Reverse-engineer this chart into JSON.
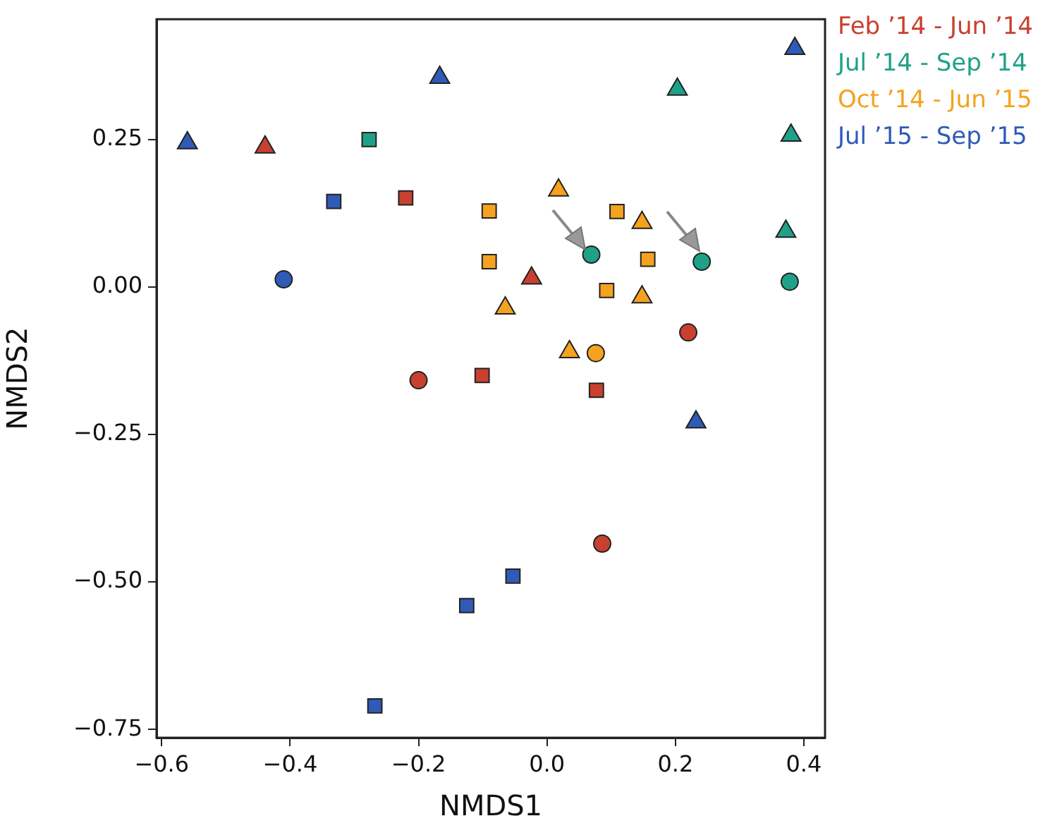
{
  "chart_data": {
    "type": "scatter",
    "xlabel": "NMDS1",
    "ylabel": "NMDS2",
    "xlim": [
      -0.608,
      0.433
    ],
    "ylim": [
      -0.764,
      0.454
    ],
    "xticks": [
      {
        "value": -0.6,
        "label": "−0.6"
      },
      {
        "value": -0.4,
        "label": "−0.4"
      },
      {
        "value": -0.2,
        "label": "−0.2"
      },
      {
        "value": 0,
        "label": "0.0"
      },
      {
        "value": 0.2,
        "label": "0.2"
      },
      {
        "value": 0.4,
        "label": "0.4"
      }
    ],
    "yticks": [
      {
        "value": -0.75,
        "label": "−0.75"
      },
      {
        "value": -0.5,
        "label": "−0.50"
      },
      {
        "value": -0.25,
        "label": "−0.25"
      },
      {
        "value": 0,
        "label": "0.00"
      },
      {
        "value": 0.25,
        "label": "0.25"
      }
    ],
    "grid": false,
    "legend": "top right",
    "series": [
      {
        "name": "Feb ’14 - Jun ’14",
        "color": "#c8402f",
        "marker": "triangle",
        "x": [
          -0.439,
          -0.024
        ],
        "values": [
          0.237,
          0.015
        ]
      },
      {
        "color": "#c8402f",
        "marker": "square",
        "x": [
          -0.22,
          -0.101,
          0.077
        ],
        "values": [
          0.151,
          -0.15,
          -0.175
        ]
      },
      {
        "color": "#c8402f",
        "marker": "circle",
        "x": [
          0.22,
          -0.2,
          0.086
        ],
        "values": [
          -0.077,
          -0.158,
          -0.435
        ]
      },
      {
        "name": "Jul ’14 - Sep ’14",
        "color": "#1fa187",
        "marker": "triangle",
        "x": [
          0.203,
          0.38,
          0.372
        ],
        "values": [
          0.335,
          0.257,
          0.094
        ]
      },
      {
        "color": "#1fa187",
        "marker": "square",
        "x": [
          -0.277
        ],
        "values": [
          0.25
        ]
      },
      {
        "color": "#1fa187",
        "marker": "circle",
        "x": [
          0.069,
          0.241,
          0.378
        ],
        "values": [
          0.055,
          0.043,
          0.009
        ]
      },
      {
        "name": "Oct ’14 - Jun ’15",
        "color": "#f5a21f",
        "marker": "triangle",
        "x": [
          0.018,
          0.148,
          0.148,
          -0.065,
          0.035
        ],
        "values": [
          0.164,
          0.109,
          -0.017,
          -0.036,
          -0.11
        ]
      },
      {
        "color": "#f5a21f",
        "marker": "square",
        "x": [
          -0.09,
          -0.09,
          0.109,
          0.157,
          0.093
        ],
        "values": [
          0.129,
          0.043,
          0.128,
          0.047,
          -0.006
        ]
      },
      {
        "color": "#f5a21f",
        "marker": "circle",
        "x": [
          0.076
        ],
        "values": [
          -0.112
        ]
      },
      {
        "name": "Jul ’15 - Sep ’15",
        "color": "#2f5bb7",
        "marker": "triangle",
        "x": [
          -0.56,
          -0.167,
          0.386,
          0.232
        ],
        "values": [
          0.244,
          0.355,
          0.404,
          -0.229
        ]
      },
      {
        "color": "#2f5bb7",
        "marker": "square",
        "x": [
          -0.332,
          -0.053,
          -0.125,
          -0.268
        ],
        "values": [
          0.145,
          -0.49,
          -0.54,
          -0.71
        ]
      },
      {
        "color": "#2f5bb7",
        "marker": "circle",
        "x": [
          -0.41
        ],
        "values": [
          0.013
        ]
      }
    ]
  }
}
